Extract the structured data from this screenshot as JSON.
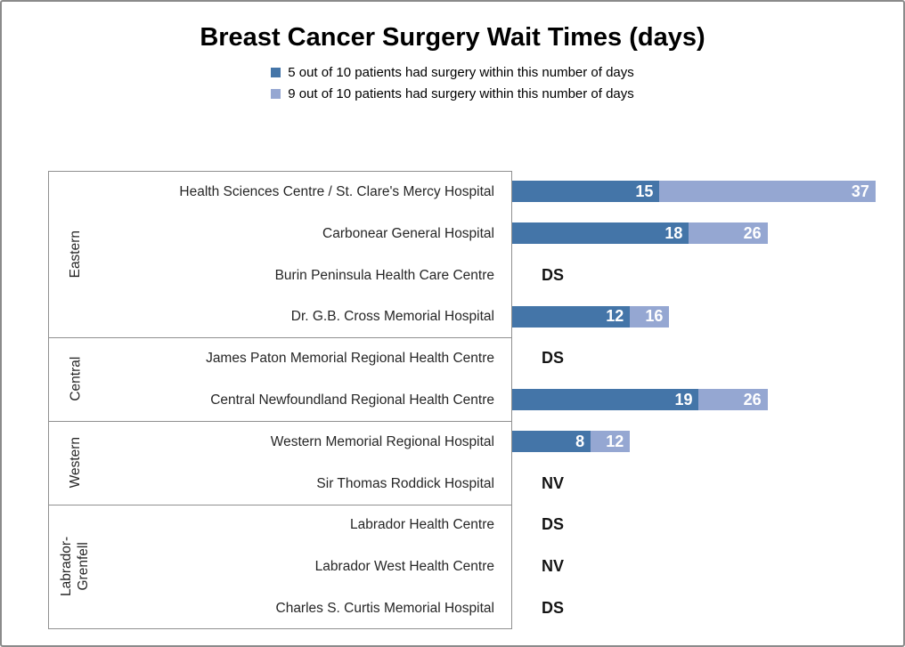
{
  "title": "Breast Cancer Surgery Wait Times (days)",
  "legend": [
    {
      "label": "5 out of 10 patients had surgery within this number of days",
      "color": "#4475A8"
    },
    {
      "label": "9 out of 10 patients had surgery within this number of days",
      "color": "#95A7D2"
    }
  ],
  "colors": {
    "p50_bar": "#4475A8",
    "p90_bar": "#95A7D2",
    "axis_line": "#909090",
    "outer_border": "#8b8b8b",
    "value_label": "#ffffff",
    "text": "#262626"
  },
  "chart_data": {
    "type": "bar",
    "orientation": "horizontal",
    "stacked": true,
    "title": "Breast Cancer Surgery Wait Times (days)",
    "xlabel": "",
    "ylabel": "",
    "xlim": [
      0,
      40
    ],
    "grid": false,
    "legend_position": "top",
    "series_names": [
      "5 out of 10 patients had surgery within this number of days",
      "9 out of 10 patients had surgery within this number of days"
    ],
    "codes_meaning_note": "",
    "groups": [
      {
        "region": "Eastern",
        "label_lines": [
          "Eastern"
        ],
        "hospitals": [
          {
            "name": "Health Sciences Centre / St. Clare's Mercy Hospital",
            "p50": 15,
            "p90": 37,
            "code": null
          },
          {
            "name": "Carbonear General Hospital",
            "p50": 18,
            "p90": 26,
            "code": null
          },
          {
            "name": "Burin Peninsula Health Care Centre",
            "p50": null,
            "p90": null,
            "code": "DS"
          },
          {
            "name": "Dr. G.B. Cross Memorial Hospital",
            "p50": 12,
            "p90": 16,
            "code": null
          }
        ]
      },
      {
        "region": "Central",
        "label_lines": [
          "Central"
        ],
        "hospitals": [
          {
            "name": "James Paton Memorial Regional Health Centre",
            "p50": null,
            "p90": null,
            "code": "DS"
          },
          {
            "name": "Central Newfoundland Regional Health Centre",
            "p50": 19,
            "p90": 26,
            "code": null
          }
        ]
      },
      {
        "region": "Western",
        "label_lines": [
          "Western"
        ],
        "hospitals": [
          {
            "name": "Western Memorial Regional Hospital",
            "p50": 8,
            "p90": 12,
            "code": null
          },
          {
            "name": "Sir Thomas Roddick Hospital",
            "p50": null,
            "p90": null,
            "code": "NV"
          }
        ]
      },
      {
        "region": "Labrador-Grenfell",
        "label_lines": [
          "Labrador-",
          "Grenfell"
        ],
        "hospitals": [
          {
            "name": "Labrador Health Centre",
            "p50": null,
            "p90": null,
            "code": "DS"
          },
          {
            "name": "Labrador West Health Centre",
            "p50": null,
            "p90": null,
            "code": "NV"
          },
          {
            "name": "Charles S. Curtis Memorial Hospital",
            "p50": null,
            "p90": null,
            "code": "DS"
          }
        ]
      }
    ]
  }
}
